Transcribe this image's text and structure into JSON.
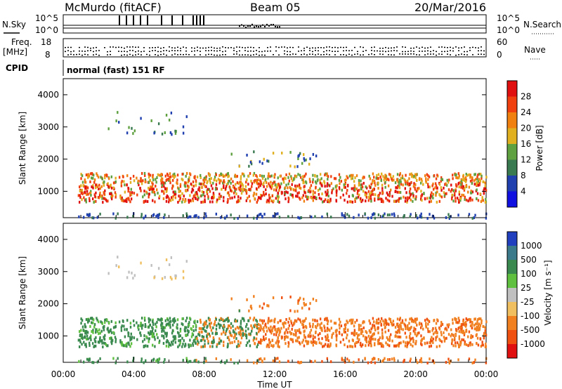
{
  "header": {
    "station": "McMurdo (fitACF)",
    "beam": "Beam 05",
    "date": "20/Mar/2016"
  },
  "status_panel": {
    "nsky_label": "N.Sky",
    "nsky_top": "10^5",
    "nsky_bottom": "10^0",
    "nsearch_label": "N.Search",
    "nsearch_top": "10^5",
    "nsearch_bottom": "10^0",
    "freq_label": "Freq.",
    "freq_unit": "[MHz]",
    "freq_top": "18",
    "freq_bottom": "8",
    "nave_label": "Nave",
    "nave_top": "60",
    "nave_bottom": "0",
    "cpid_label": "CPID",
    "cpid_text": "normal (fast) 151 RF"
  },
  "chart_data": [
    {
      "type": "heatmap",
      "panel": "power",
      "ylabel": "Slant Range [km]",
      "y_ticks": [
        "1000",
        "2000",
        "3000",
        "4000"
      ],
      "ylim": [
        180,
        4500
      ],
      "x_ticks": [
        "00:00",
        "04:00",
        "08:00",
        "12:00",
        "16:00",
        "20:00",
        "00:00"
      ],
      "xlim_hours": [
        0,
        24
      ],
      "colorbar": {
        "label": "Power [dB]",
        "ticks": [
          "4",
          "8",
          "12",
          "16",
          "20",
          "24",
          "28"
        ],
        "colors": [
          "#1010e0",
          "#2040b0",
          "#3a7a50",
          "#5fa040",
          "#e0b020",
          "#f08010",
          "#f04010",
          "#e01010"
        ]
      },
      "bands": [
        {
          "t0": 0.8,
          "t1": 24,
          "r0": 700,
          "r1": 1600,
          "level": "strong"
        },
        {
          "t0": 2.5,
          "t1": 7.0,
          "r0": 2800,
          "r1": 3500,
          "level": "weak"
        },
        {
          "t0": 9.5,
          "t1": 14.5,
          "r0": 1800,
          "r1": 2300,
          "level": "weak"
        }
      ]
    },
    {
      "type": "heatmap",
      "panel": "velocity",
      "ylabel": "Slant Range [km]",
      "y_ticks": [
        "1000",
        "2000",
        "3000",
        "4000"
      ],
      "ylim": [
        180,
        4500
      ],
      "x_ticks": [
        "00:00",
        "04:00",
        "08:00",
        "12:00",
        "16:00",
        "20:00",
        "00:00"
      ],
      "xlim_hours": [
        0,
        24
      ],
      "xlabel": "Time UT",
      "colorbar": {
        "label": "Velocity [m s⁻¹]",
        "ticks": [
          "1000",
          "500",
          "100",
          "25",
          "-25",
          "-100",
          "-500",
          "-1000"
        ],
        "colors": [
          "#2040c0",
          "#3a7a8a",
          "#3a8a50",
          "#5fc040",
          "#c0c0c0",
          "#f0c060",
          "#f08020",
          "#f05010",
          "#e01010"
        ]
      }
    }
  ]
}
